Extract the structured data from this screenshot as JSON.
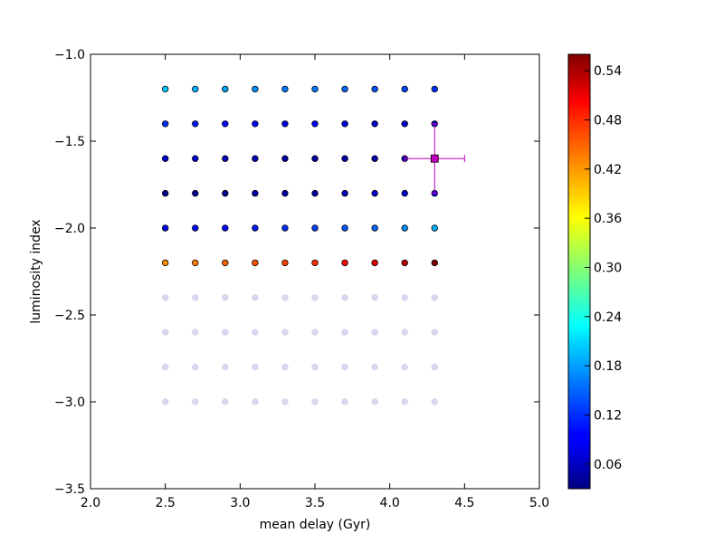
{
  "chart_data": {
    "type": "scatter",
    "title": "",
    "xlabel": "mean delay (Gyr)",
    "ylabel": "luminosity index",
    "xlim": [
      2.0,
      5.0
    ],
    "ylim": [
      -3.5,
      -1.0
    ],
    "xticks": [
      2.0,
      2.5,
      3.0,
      3.5,
      4.0,
      4.5,
      5.0
    ],
    "xtick_labels": [
      "2.0",
      "2.5",
      "3.0",
      "3.5",
      "4.0",
      "4.5",
      "5.0"
    ],
    "yticks": [
      -1.0,
      -1.5,
      -2.0,
      -2.5,
      -3.0,
      -3.5
    ],
    "ytick_labels": [
      "−1.0",
      "−1.5",
      "−2.0",
      "−2.5",
      "−3.0",
      "−3.5"
    ],
    "grid": false,
    "colormap": "jet",
    "colorbar": {
      "vmin": 0.03,
      "vmax": 0.56,
      "ticks": [
        0.06,
        0.12,
        0.18,
        0.24,
        0.3,
        0.36,
        0.42,
        0.48,
        0.54
      ],
      "tick_labels": [
        "0.06",
        "0.12",
        "0.18",
        "0.24",
        "0.30",
        "0.36",
        "0.42",
        "0.48",
        "0.54"
      ]
    },
    "x": [
      2.5,
      2.7,
      2.9,
      3.1,
      3.3,
      3.5,
      3.7,
      3.9,
      4.1,
      4.3
    ],
    "y": [
      -1.2,
      -1.4,
      -1.6,
      -1.8,
      -2.0,
      -2.2,
      -2.4,
      -2.6,
      -2.8,
      -3.0
    ],
    "colored_rows": [
      {
        "y": -1.2,
        "values": [
          0.2,
          0.19,
          0.18,
          0.17,
          0.16,
          0.16,
          0.15,
          0.14,
          0.13,
          0.12
        ]
      },
      {
        "y": -1.4,
        "values": [
          0.12,
          0.11,
          0.1,
          0.1,
          0.09,
          0.09,
          0.08,
          0.07,
          0.07,
          0.06
        ]
      },
      {
        "y": -1.6,
        "values": [
          0.07,
          0.07,
          0.06,
          0.06,
          0.05,
          0.05,
          0.05,
          0.05,
          0.05,
          0.05
        ]
      },
      {
        "y": -1.8,
        "values": [
          0.04,
          0.04,
          0.04,
          0.05,
          0.05,
          0.05,
          0.06,
          0.07,
          0.07,
          0.08
        ]
      },
      {
        "y": -2.0,
        "values": [
          0.09,
          0.1,
          0.1,
          0.11,
          0.12,
          0.13,
          0.14,
          0.15,
          0.17,
          0.19
        ]
      },
      {
        "y": -2.2,
        "values": [
          0.42,
          0.43,
          0.44,
          0.45,
          0.46,
          0.47,
          0.49,
          0.51,
          0.53,
          0.56
        ]
      }
    ],
    "faded_rows": [
      -2.4,
      -2.6,
      -2.8,
      -3.0
    ],
    "faded_color": "#d8d8f0",
    "highlight_point": {
      "x": 4.3,
      "y": -1.6,
      "xerr": [
        0.2,
        0.2
      ],
      "yerr": [
        0.2,
        0.2
      ],
      "marker": "square",
      "color": "#c000c0"
    }
  }
}
